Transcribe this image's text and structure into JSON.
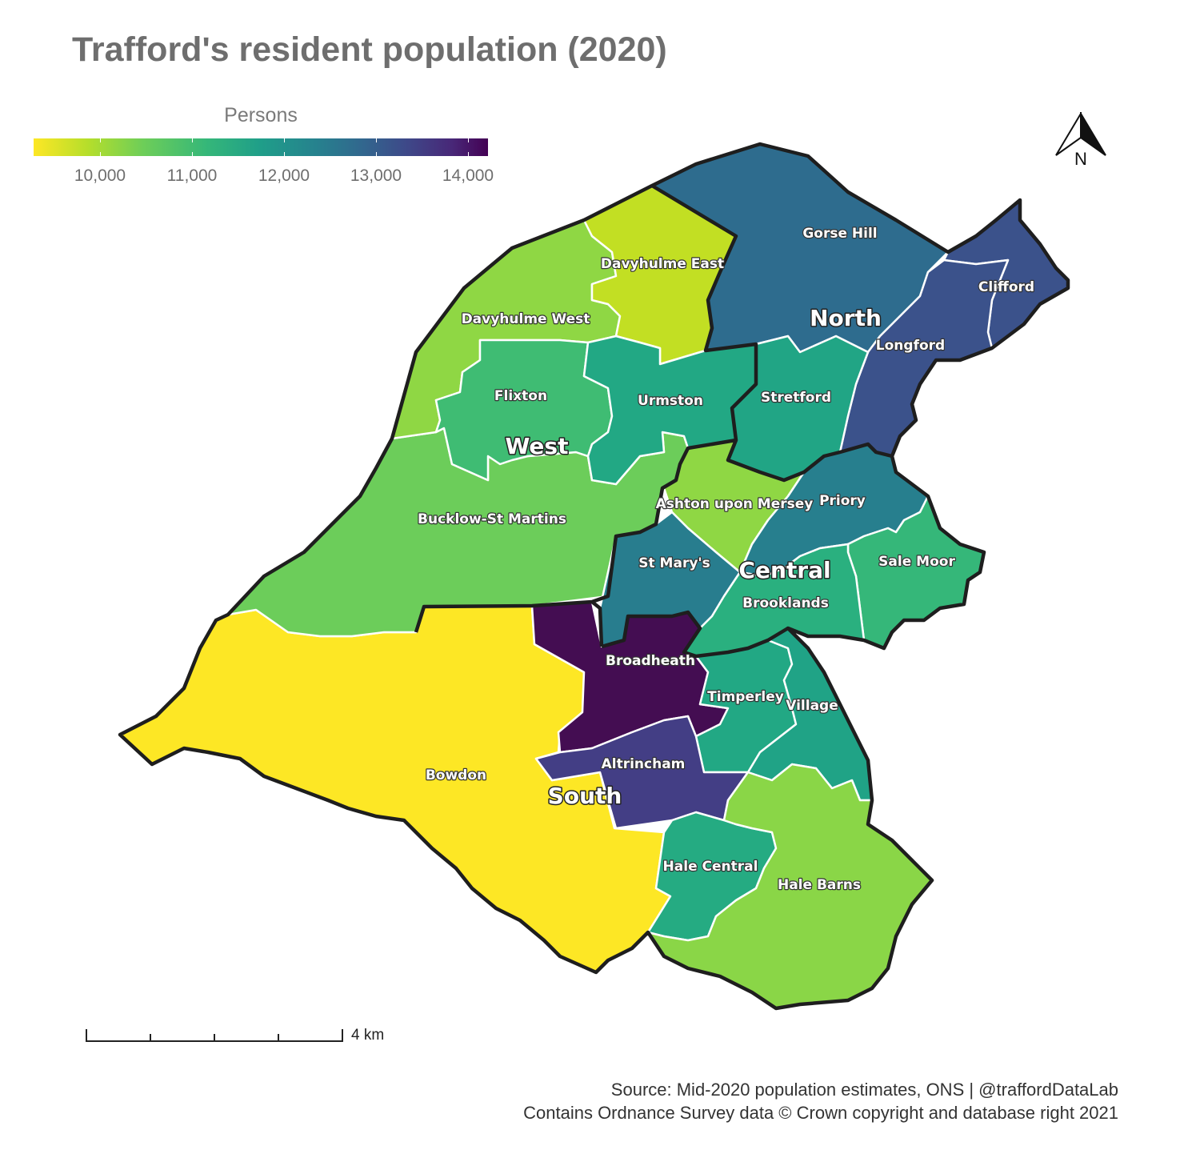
{
  "title": "Trafford's resident population (2020)",
  "legend": {
    "title": "Persons",
    "min": 9250,
    "max": 14200,
    "ticks": [
      "10,000",
      "11,000",
      "12,000",
      "13,000",
      "14,000"
    ],
    "tick_values": [
      10000,
      11000,
      12000,
      13000,
      14000
    ],
    "palette": [
      "#fde725",
      "#b5de2b",
      "#6ece58",
      "#35b779",
      "#1f9e89",
      "#26828e",
      "#31688e",
      "#3e4989",
      "#482878",
      "#440154"
    ]
  },
  "map": {
    "wards": [
      {
        "name": "Gorse Hill",
        "color": "#2e6c8e"
      },
      {
        "name": "Clifford",
        "color": "#3b528b"
      },
      {
        "name": "Longford",
        "color": "#3b528b"
      },
      {
        "name": "Stretford",
        "color": "#21a585"
      },
      {
        "name": "Davyhulme East",
        "color": "#c2df23"
      },
      {
        "name": "Davyhulme West",
        "color": "#8fd744"
      },
      {
        "name": "Flixton",
        "color": "#3fbc73"
      },
      {
        "name": "Urmston",
        "color": "#22a884"
      },
      {
        "name": "Bucklow-St Martins",
        "color": "#6ccd5a"
      },
      {
        "name": "Ashton upon Mersey",
        "color": "#8fd744"
      },
      {
        "name": "Priory",
        "color": "#277f8e"
      },
      {
        "name": "St Mary's",
        "color": "#287d8e"
      },
      {
        "name": "Sale Moor",
        "color": "#35b779"
      },
      {
        "name": "Brooklands",
        "color": "#2ab07f"
      },
      {
        "name": "Broadheath",
        "color": "#440d52"
      },
      {
        "name": "Timperley",
        "color": "#22a884"
      },
      {
        "name": "Village",
        "color": "#20a386"
      },
      {
        "name": "Altrincham",
        "color": "#433e85"
      },
      {
        "name": "Bowdon",
        "color": "#fde725"
      },
      {
        "name": "Hale Central",
        "color": "#25ab82"
      },
      {
        "name": "Hale Barns",
        "color": "#8ad647"
      }
    ],
    "areas": [
      "North",
      "West",
      "Central",
      "South"
    ]
  },
  "north_arrow_label": "N",
  "scale_label": "4 km",
  "source": {
    "line1": "Source: Mid-2020 population estimates, ONS | @traffordDataLab",
    "line2": "Contains Ordnance Survey data © Crown copyright and database right 2021"
  }
}
